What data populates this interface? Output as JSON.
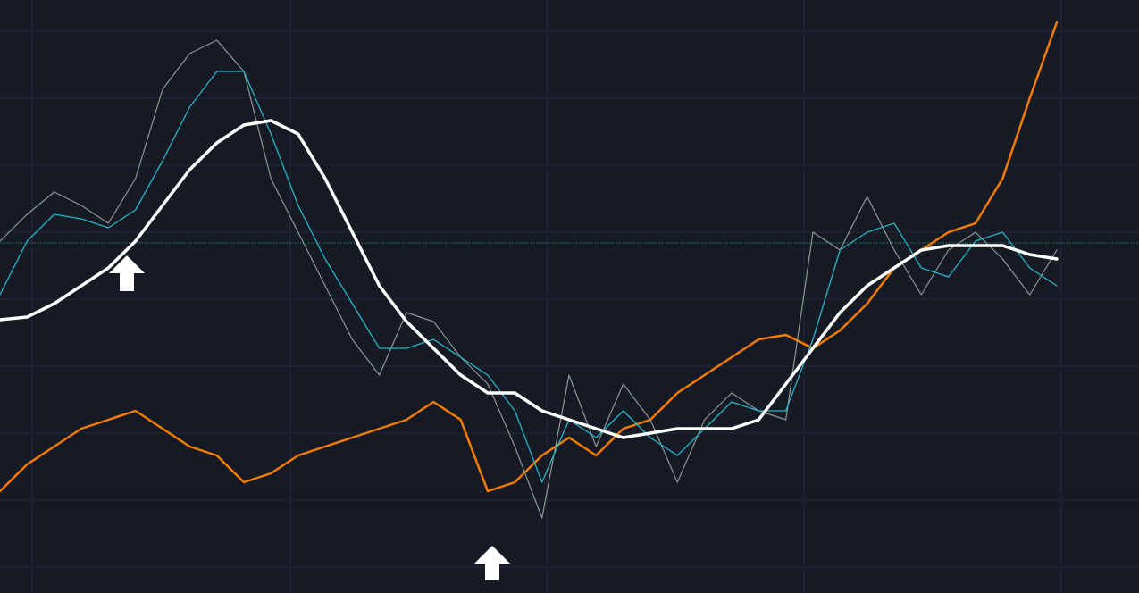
{
  "chart_data": {
    "type": "line",
    "ylim": [
      0,
      664
    ],
    "price_line": {
      "value": 392,
      "color": "#26a69a"
    },
    "series": [
      {
        "color": "#f57c00",
        "width": 2.5,
        "values": [
          114,
          144,
          164,
          184,
          194,
          204,
          184,
          164,
          154,
          124,
          134,
          154,
          164,
          174,
          184,
          194,
          214,
          194,
          114,
          124,
          154,
          174,
          154,
          184,
          194,
          224,
          244,
          264,
          284,
          289,
          274,
          294,
          324,
          364,
          384,
          404,
          414,
          464,
          554,
          639
        ]
      },
      {
        "color": "#8a9a8f",
        "width": 1.2,
        "values": [
          394,
          424,
          449,
          434,
          414,
          464,
          564,
          604,
          619,
          584,
          464,
          404,
          344,
          284,
          244,
          314,
          304,
          264,
          234,
          164,
          84,
          244,
          164,
          234,
          194,
          124,
          194,
          224,
          204,
          194,
          404,
          384,
          444,
          384,
          334,
          384,
          404,
          374,
          334,
          384
        ]
      },
      {
        "color": "#26b5c8",
        "width": 1.3,
        "values": [
          334,
          394,
          424,
          419,
          409,
          429,
          484,
          544,
          584,
          584,
          514,
          434,
          374,
          324,
          274,
          274,
          284,
          264,
          244,
          204,
          124,
          194,
          174,
          204,
          174,
          154,
          184,
          214,
          204,
          204,
          284,
          384,
          404,
          414,
          364,
          354,
          394,
          404,
          364,
          344
        ]
      },
      {
        "color": "#ffffff",
        "width": 3.5,
        "values": [
          306,
          309,
          324,
          344,
          364,
          394,
          434,
          474,
          504,
          524,
          529,
          514,
          464,
          404,
          344,
          304,
          274,
          244,
          224,
          224,
          204,
          194,
          184,
          174,
          179,
          184,
          184,
          184,
          194,
          234,
          274,
          314,
          344,
          364,
          384,
          389,
          389,
          389,
          379,
          374
        ]
      }
    ]
  }
}
